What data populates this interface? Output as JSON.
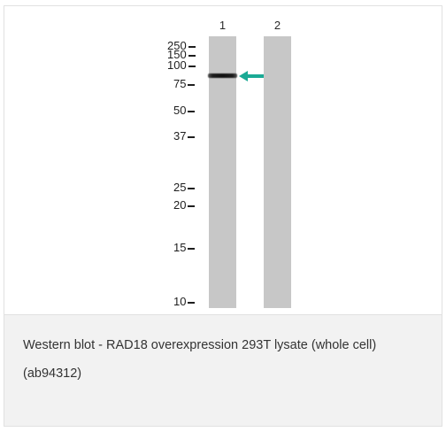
{
  "figure": {
    "lanes": [
      {
        "label": "1"
      },
      {
        "label": "2"
      }
    ],
    "markers": [
      "250",
      "150",
      "100",
      "75",
      "50",
      "37",
      "25",
      "20",
      "15",
      "10"
    ],
    "arrow_color": "#1aaa95"
  },
  "caption": {
    "text": "Western blot - RAD18 overexpression 293T lysate (whole cell) (ab94312)"
  }
}
